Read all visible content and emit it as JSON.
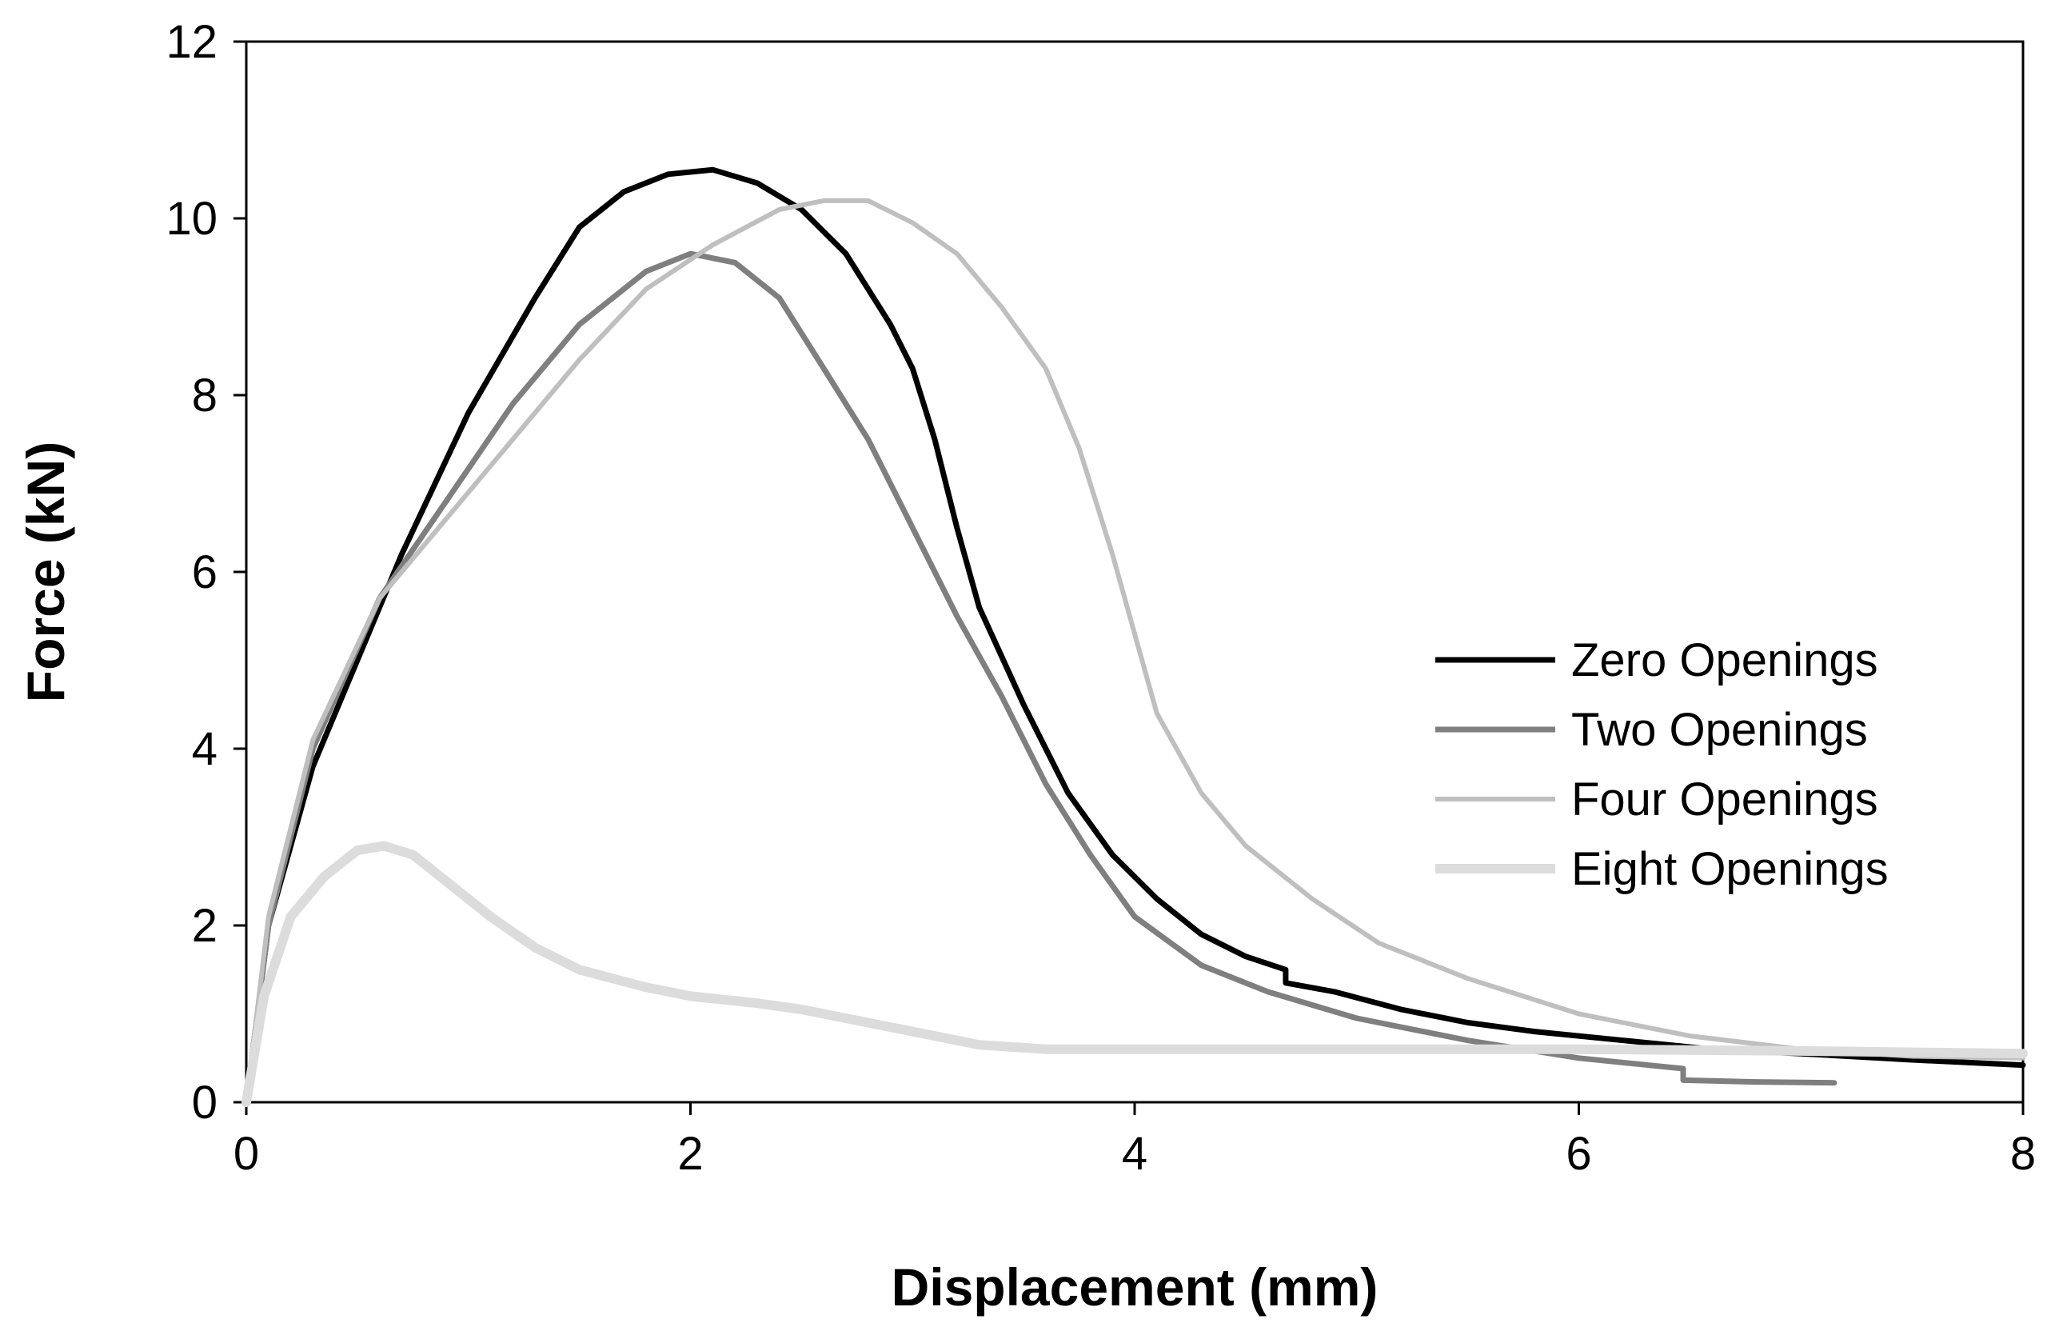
{
  "chart_data": {
    "type": "line",
    "title": "",
    "xlabel": "Displacement (mm)",
    "ylabel": "Force (kN)",
    "xlim": [
      0,
      8
    ],
    "ylim": [
      0,
      12
    ],
    "xticks": [
      0,
      2,
      4,
      6,
      8
    ],
    "yticks": [
      0,
      2,
      4,
      6,
      8,
      10,
      12
    ],
    "grid": false,
    "legend_position": "right",
    "series": [
      {
        "name": "Zero Openings",
        "color": "#000000",
        "points": [
          [
            0,
            0
          ],
          [
            0.1,
            2.0
          ],
          [
            0.3,
            3.8
          ],
          [
            0.5,
            5.0
          ],
          [
            0.7,
            6.2
          ],
          [
            1.0,
            7.8
          ],
          [
            1.3,
            9.1
          ],
          [
            1.5,
            9.9
          ],
          [
            1.7,
            10.3
          ],
          [
            1.9,
            10.5
          ],
          [
            2.1,
            10.55
          ],
          [
            2.3,
            10.4
          ],
          [
            2.5,
            10.1
          ],
          [
            2.7,
            9.6
          ],
          [
            2.9,
            8.8
          ],
          [
            3.0,
            8.3
          ],
          [
            3.1,
            7.5
          ],
          [
            3.2,
            6.5
          ],
          [
            3.3,
            5.6
          ],
          [
            3.5,
            4.5
          ],
          [
            3.7,
            3.5
          ],
          [
            3.9,
            2.8
          ],
          [
            4.1,
            2.3
          ],
          [
            4.3,
            1.9
          ],
          [
            4.5,
            1.65
          ],
          [
            4.68,
            1.5
          ],
          [
            4.68,
            1.35
          ],
          [
            4.9,
            1.25
          ],
          [
            5.2,
            1.05
          ],
          [
            5.5,
            0.9
          ],
          [
            5.8,
            0.8
          ],
          [
            6.2,
            0.7
          ],
          [
            6.6,
            0.6
          ],
          [
            7.0,
            0.55
          ],
          [
            7.5,
            0.48
          ],
          [
            8.0,
            0.42
          ]
        ]
      },
      {
        "name": "Two Openings",
        "color": "#7f7f7f",
        "points": [
          [
            0,
            0
          ],
          [
            0.1,
            2.0
          ],
          [
            0.3,
            4.0
          ],
          [
            0.6,
            5.7
          ],
          [
            0.9,
            6.8
          ],
          [
            1.2,
            7.9
          ],
          [
            1.5,
            8.8
          ],
          [
            1.8,
            9.4
          ],
          [
            2.0,
            9.6
          ],
          [
            2.2,
            9.5
          ],
          [
            2.4,
            9.1
          ],
          [
            2.6,
            8.3
          ],
          [
            2.8,
            7.5
          ],
          [
            3.0,
            6.5
          ],
          [
            3.2,
            5.5
          ],
          [
            3.4,
            4.6
          ],
          [
            3.6,
            3.6
          ],
          [
            3.8,
            2.8
          ],
          [
            4.0,
            2.1
          ],
          [
            4.3,
            1.55
          ],
          [
            4.6,
            1.25
          ],
          [
            5.0,
            0.95
          ],
          [
            5.5,
            0.7
          ],
          [
            6.0,
            0.5
          ],
          [
            6.47,
            0.38
          ],
          [
            6.47,
            0.25
          ],
          [
            6.8,
            0.23
          ],
          [
            7.15,
            0.22
          ]
        ]
      },
      {
        "name": "Four Openings",
        "color": "#bfbfbf",
        "points": [
          [
            0,
            0
          ],
          [
            0.1,
            2.1
          ],
          [
            0.3,
            4.1
          ],
          [
            0.6,
            5.7
          ],
          [
            0.9,
            6.6
          ],
          [
            1.2,
            7.5
          ],
          [
            1.5,
            8.4
          ],
          [
            1.8,
            9.2
          ],
          [
            2.1,
            9.7
          ],
          [
            2.4,
            10.1
          ],
          [
            2.6,
            10.2
          ],
          [
            2.8,
            10.2
          ],
          [
            3.0,
            9.95
          ],
          [
            3.2,
            9.6
          ],
          [
            3.4,
            9.0
          ],
          [
            3.6,
            8.3
          ],
          [
            3.75,
            7.4
          ],
          [
            3.9,
            6.2
          ],
          [
            4.0,
            5.3
          ],
          [
            4.1,
            4.4
          ],
          [
            4.3,
            3.5
          ],
          [
            4.5,
            2.9
          ],
          [
            4.8,
            2.3
          ],
          [
            5.1,
            1.8
          ],
          [
            5.5,
            1.4
          ],
          [
            6.0,
            1.0
          ],
          [
            6.5,
            0.75
          ],
          [
            7.0,
            0.6
          ],
          [
            7.5,
            0.52
          ],
          [
            8.0,
            0.5
          ]
        ]
      },
      {
        "name": "Eight Openings",
        "color": "#dcdcdc",
        "points": [
          [
            0,
            0
          ],
          [
            0.08,
            1.2
          ],
          [
            0.2,
            2.1
          ],
          [
            0.35,
            2.55
          ],
          [
            0.5,
            2.85
          ],
          [
            0.62,
            2.9
          ],
          [
            0.75,
            2.8
          ],
          [
            0.9,
            2.5
          ],
          [
            1.1,
            2.1
          ],
          [
            1.3,
            1.75
          ],
          [
            1.5,
            1.5
          ],
          [
            1.8,
            1.3
          ],
          [
            2.0,
            1.2
          ],
          [
            2.3,
            1.12
          ],
          [
            2.5,
            1.05
          ],
          [
            2.7,
            0.95
          ],
          [
            2.9,
            0.85
          ],
          [
            3.1,
            0.75
          ],
          [
            3.3,
            0.65
          ],
          [
            3.6,
            0.6
          ],
          [
            4.0,
            0.6
          ],
          [
            5.0,
            0.6
          ],
          [
            6.0,
            0.6
          ],
          [
            7.0,
            0.58
          ],
          [
            8.0,
            0.55
          ]
        ]
      }
    ]
  }
}
